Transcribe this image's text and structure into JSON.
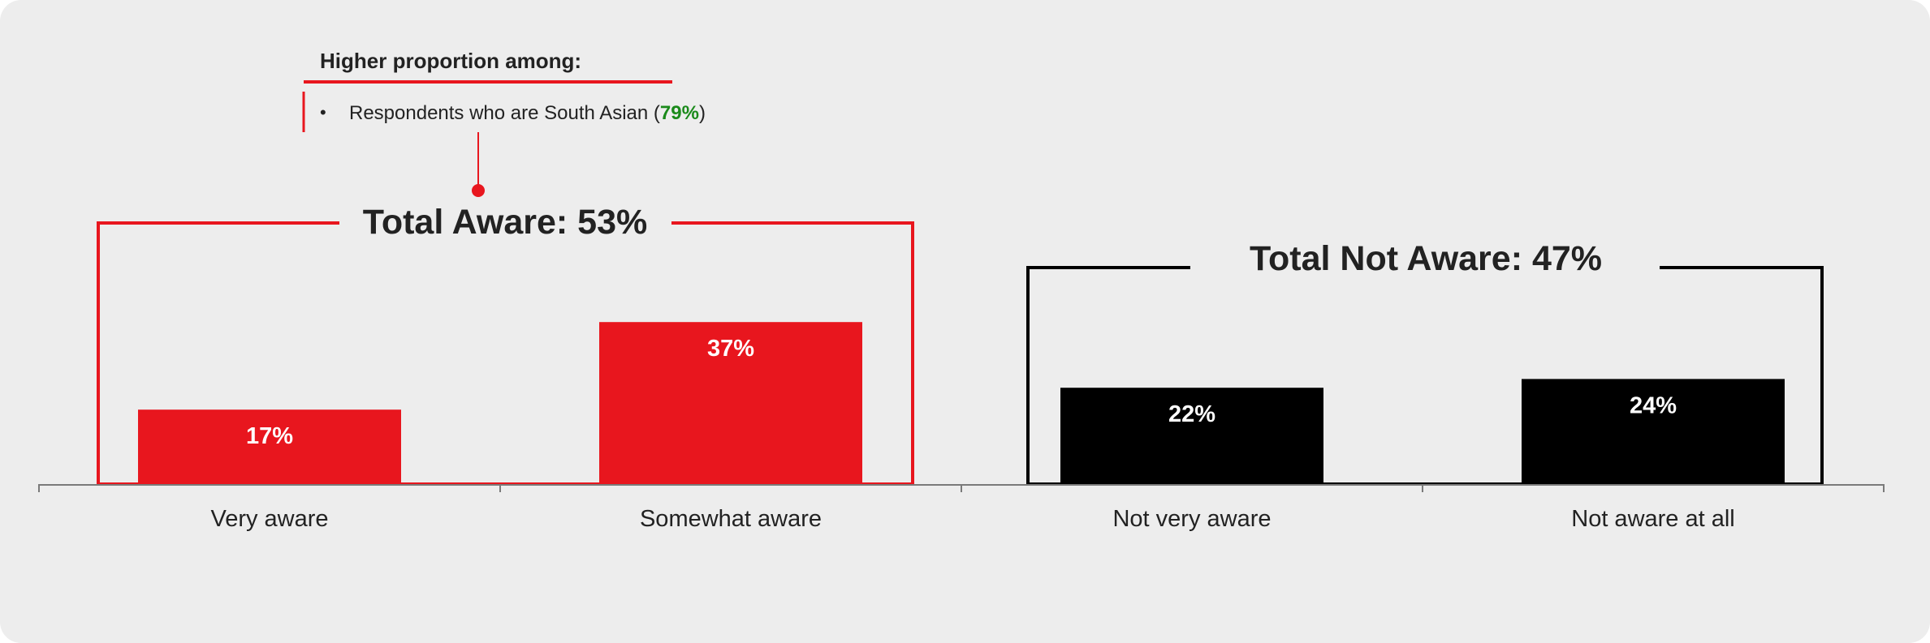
{
  "callout": {
    "heading": "Higher proportion among:",
    "bullet_symbol": "•",
    "item_text": "Respondents who are South Asian (",
    "item_value": "79%",
    "item_close": ")",
    "value_color": "#1a8a1a"
  },
  "groups": {
    "aware_label": "Total Aware: 53%",
    "not_aware_label": "Total Not Aware: 47%",
    "aware_color": "#e8161e",
    "not_aware_color": "#000000"
  },
  "chart_data": {
    "type": "bar",
    "categories": [
      "Very aware",
      "Somewhat aware",
      "Not very aware",
      "Not aware at all"
    ],
    "values": [
      17,
      37,
      22,
      24
    ],
    "value_labels": [
      "17%",
      "37%",
      "22%",
      "24%"
    ],
    "colors": [
      "#e8161e",
      "#e8161e",
      "#000000",
      "#000000"
    ],
    "unit": "%",
    "xlabel": "",
    "ylabel": "",
    "ylim": [
      0,
      60
    ],
    "grid": false,
    "legend": "none"
  }
}
